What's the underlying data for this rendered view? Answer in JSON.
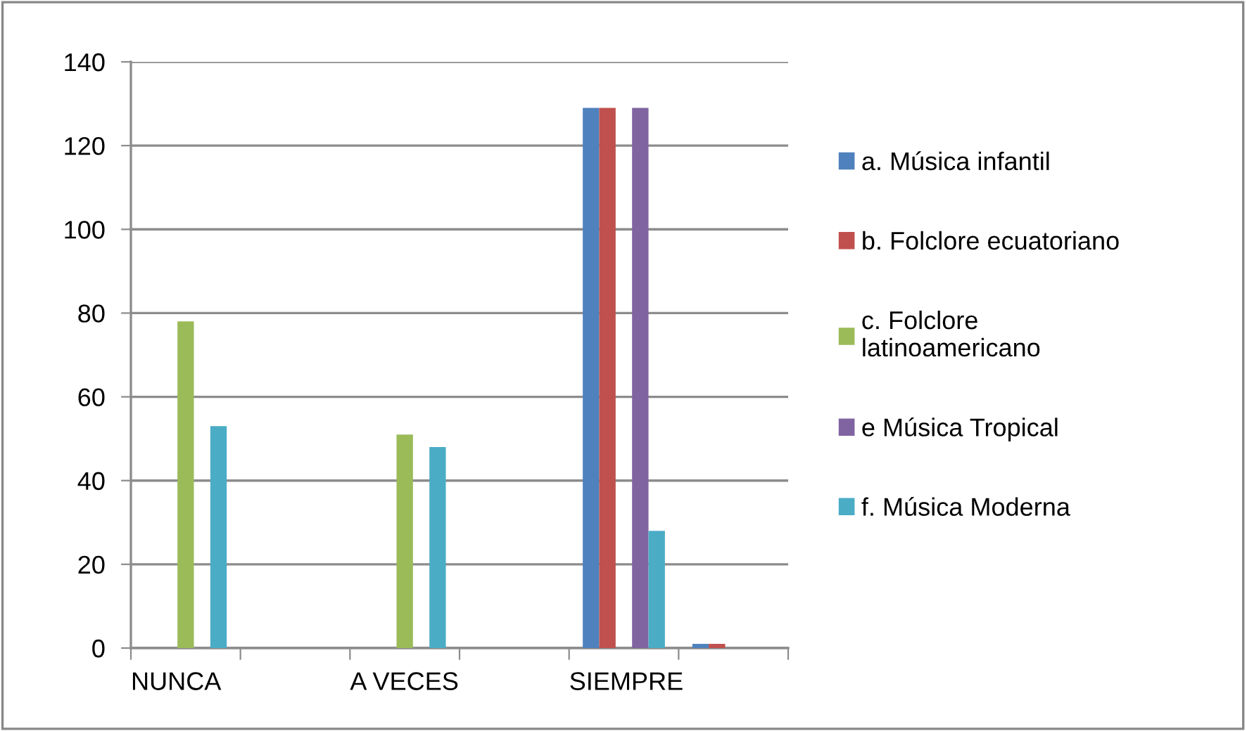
{
  "chart_data": {
    "type": "bar",
    "categories": [
      "NUNCA",
      null,
      "A VECES",
      null,
      "SIEMPRE",
      null
    ],
    "series": [
      {
        "name": "a. Música infantil",
        "color": "#4f81bd",
        "values": [
          0,
          0,
          0,
          0,
          129,
          1
        ]
      },
      {
        "name": "b. Folclore ecuatoriano",
        "color": "#c0504d",
        "values": [
          0,
          0,
          0,
          0,
          129,
          1
        ]
      },
      {
        "name": "c. Folclore latinoamericano",
        "color": "#9bbb59",
        "values": [
          78,
          0,
          51,
          0,
          0,
          0
        ]
      },
      {
        "name": "e Música Tropical",
        "color": "#8064a2",
        "values": [
          0,
          0,
          0,
          0,
          129,
          0
        ]
      },
      {
        "name": "f. Música Moderna",
        "color": "#4bacc6",
        "values": [
          53,
          0,
          48,
          0,
          28,
          0
        ]
      }
    ],
    "ylim": [
      0,
      140
    ],
    "yticks": [
      0,
      20,
      40,
      60,
      80,
      100,
      120,
      140
    ],
    "grid": "y",
    "legend": "right"
  }
}
